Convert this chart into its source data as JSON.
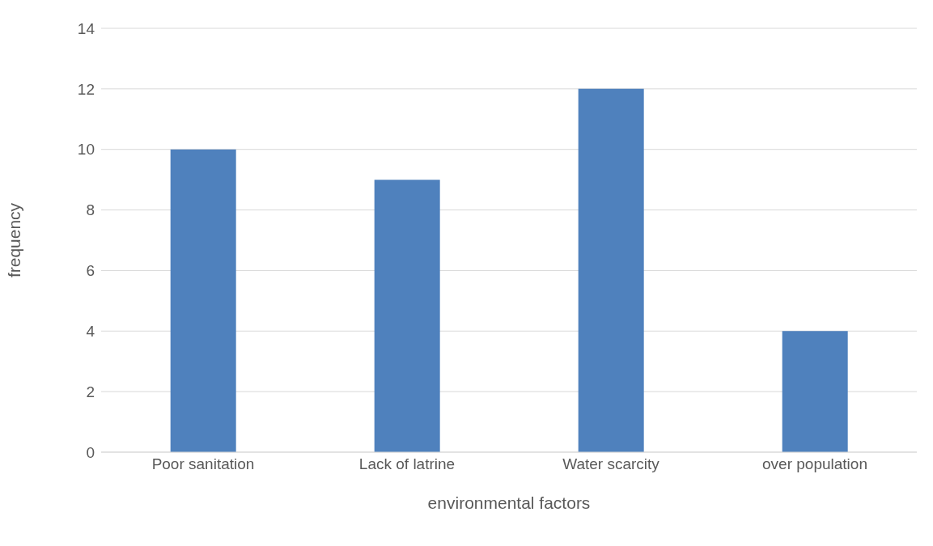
{
  "chart_data": {
    "type": "bar",
    "xlabel": "environmental factors",
    "ylabel": "frequency",
    "categories": [
      "Poor sanitation",
      "Lack of latrine",
      "Water scarcity",
      "over population"
    ],
    "values": [
      10,
      9,
      12,
      4
    ],
    "color": "#4f81bd",
    "ylim": [
      0,
      14
    ],
    "yticks": [
      0,
      2,
      4,
      6,
      8,
      10,
      12,
      14
    ],
    "grid": "y"
  }
}
